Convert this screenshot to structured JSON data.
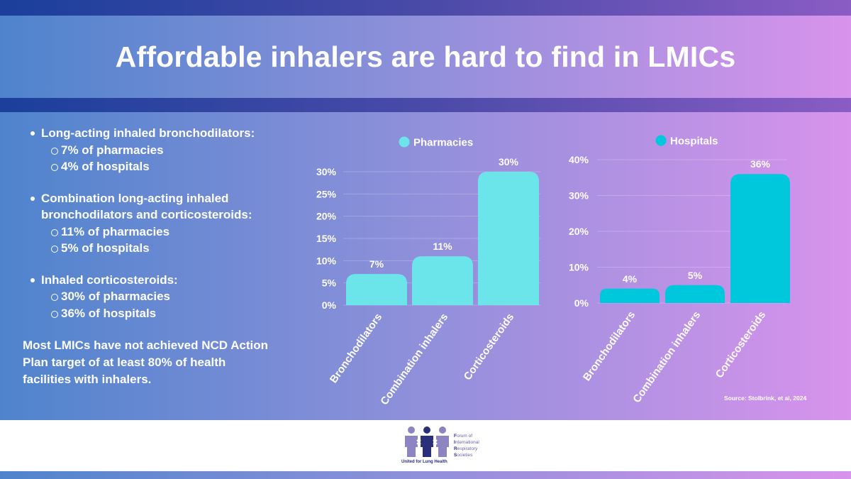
{
  "title": "Affordable inhalers are hard to find in LMICs",
  "bullets": {
    "items": [
      {
        "label": "Long-acting inhaled bronchodilators:",
        "sub": [
          "7% of pharmacies",
          "4% of hospitals"
        ]
      },
      {
        "label_line1": "Combination long-acting inhaled",
        "label_line2": "bronchodilators and corticosteroids:",
        "sub": [
          "11% of pharmacies",
          "5% of hospitals"
        ]
      },
      {
        "label": "Inhaled corticosteroids:",
        "sub": [
          "30% of pharmacies",
          "36% of hospitals"
        ]
      }
    ],
    "note_lines": [
      "Most LMICs have not achieved NCD Action",
      "Plan target of at least 80% of health",
      "facilities with inhalers."
    ]
  },
  "source": "Source: Stolbrink, et al, 2024",
  "logo": {
    "tagline": "United for Lung Health",
    "org_lines": [
      [
        "F",
        "orum of"
      ],
      [
        "I",
        "nternational"
      ],
      [
        "R",
        "espiratory"
      ],
      [
        "S",
        "ocieties"
      ]
    ]
  },
  "chart_data": [
    {
      "type": "bar",
      "title": "",
      "legend": "Pharmacies",
      "color": "#6ce5ea",
      "categories": [
        "Bronchodilators",
        "Combination inhalers",
        "Corticosteroids"
      ],
      "values": [
        7,
        11,
        30
      ],
      "labels": [
        "7%",
        "11%",
        "30%"
      ],
      "ylim": [
        0,
        30
      ],
      "yticks": [
        0,
        5,
        10,
        15,
        20,
        25,
        30
      ],
      "ytick_labels": [
        "0%",
        "5%",
        "10%",
        "15%",
        "20%",
        "25%",
        "30%"
      ],
      "xlabel": "",
      "ylabel": ""
    },
    {
      "type": "bar",
      "title": "",
      "legend": "Hospitals",
      "color": "#00c8dc",
      "categories": [
        "Bronchodilators",
        "Combination inhalers",
        "Corticosteroids"
      ],
      "values": [
        4,
        5,
        36
      ],
      "labels": [
        "4%",
        "5%",
        "36%"
      ],
      "ylim": [
        0,
        40
      ],
      "yticks": [
        0,
        10,
        20,
        30,
        40
      ],
      "ytick_labels": [
        "0%",
        "10%",
        "20%",
        "30%",
        "40%"
      ],
      "xlabel": "",
      "ylabel": ""
    }
  ]
}
